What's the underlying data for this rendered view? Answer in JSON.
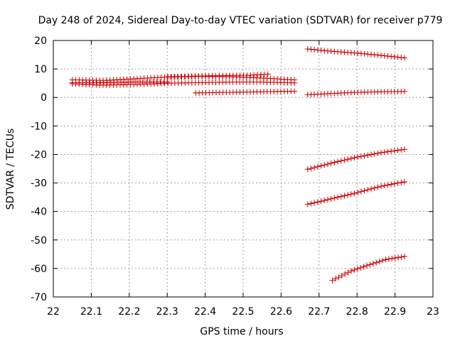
{
  "chart_data": {
    "type": "scatter",
    "title": "Day 248 of 2024, Sidereal Day-to-day VTEC variation (SDTVAR) for receiver p779",
    "xlabel": "GPS time / hours",
    "ylabel": "SDTVAR / TECUs",
    "xlim": [
      22,
      23
    ],
    "ylim": [
      -70,
      20
    ],
    "xticks": [
      "22",
      "22.1",
      "22.2",
      "22.3",
      "22.4",
      "22.5",
      "22.6",
      "22.7",
      "22.8",
      "22.9",
      "23"
    ],
    "yticks": [
      "-70",
      "-60",
      "-50",
      "-40",
      "-30",
      "-20",
      "-10",
      "0",
      "10",
      "20"
    ],
    "grid": true,
    "marker": "plus",
    "marker_color": "#cc0000",
    "series": [
      {
        "name": "s1",
        "x_start": 22.05,
        "x_end": 22.635,
        "n": 66,
        "y": [
          6.2,
          6.0,
          6.6,
          7.2,
          7.4,
          7.3,
          6.8,
          6.2
        ]
      },
      {
        "name": "s2",
        "x_start": 22.05,
        "x_end": 22.635,
        "n": 66,
        "y": [
          4.8,
          4.3,
          4.6,
          5.0,
          5.2,
          5.4,
          5.4,
          5.1
        ]
      },
      {
        "name": "s3",
        "x_start": 22.05,
        "x_end": 22.3,
        "n": 28,
        "y": [
          5.2,
          5.2,
          5.4,
          5.4
        ]
      },
      {
        "name": "s4",
        "x_start": 22.3,
        "x_end": 22.565,
        "n": 30,
        "y": [
          7.2,
          7.4,
          7.6,
          7.7,
          7.8,
          8.2
        ]
      },
      {
        "name": "s5",
        "x_start": 22.375,
        "x_end": 22.635,
        "n": 30,
        "y": [
          1.6,
          1.8,
          2.0,
          2.2
        ]
      },
      {
        "name": "s6",
        "x_start": 22.67,
        "x_end": 22.925,
        "n": 30,
        "y": [
          17.0,
          16.2,
          15.6,
          14.8,
          13.9
        ]
      },
      {
        "name": "s7",
        "x_start": 22.67,
        "x_end": 22.925,
        "n": 30,
        "y": [
          1.0,
          1.4,
          1.8,
          2.0,
          2.1
        ]
      },
      {
        "name": "s8",
        "x_start": 22.67,
        "x_end": 22.925,
        "n": 30,
        "y": [
          -25.2,
          -23.0,
          -21.0,
          -19.4,
          -18.2
        ]
      },
      {
        "name": "s9",
        "x_start": 22.67,
        "x_end": 22.925,
        "n": 30,
        "y": [
          -37.5,
          -35.5,
          -33.5,
          -31.2,
          -29.6
        ]
      },
      {
        "name": "s10",
        "x_start": 22.735,
        "x_end": 22.925,
        "n": 24,
        "y": [
          -64.2,
          -61.0,
          -58.8,
          -56.8,
          -55.8
        ]
      }
    ]
  }
}
